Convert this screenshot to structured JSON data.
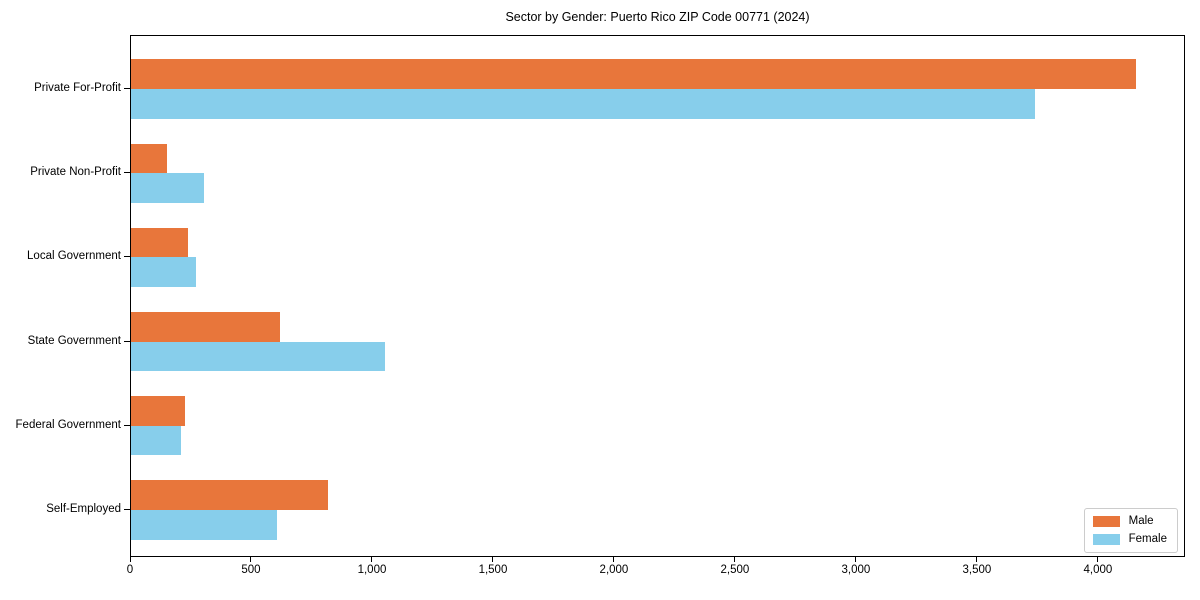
{
  "chart_data": {
    "type": "bar",
    "orientation": "horizontal",
    "title": "Sector by Gender: Puerto Rico ZIP Code 00771 (2024)",
    "categories": [
      "Private For-Profit",
      "Private Non-Profit",
      "Local Government",
      "State Government",
      "Federal Government",
      "Self-Employed"
    ],
    "series": [
      {
        "name": "Male",
        "color": "#E8763B",
        "values": [
          4155,
          150,
          235,
          615,
          225,
          815
        ]
      },
      {
        "name": "Female",
        "color": "#87CEEB",
        "values": [
          3735,
          300,
          270,
          1050,
          205,
          605
        ]
      }
    ],
    "xlabel": "",
    "ylabel": "",
    "xlim": [
      0,
      4360
    ],
    "xticks": [
      0,
      500,
      1000,
      1500,
      2000,
      2500,
      3000,
      3500,
      4000
    ],
    "xtick_labels": [
      "0",
      "500",
      "1,000",
      "1,500",
      "2,000",
      "2,500",
      "3,000",
      "3,500",
      "4,000"
    ],
    "grid": false,
    "legend": {
      "position": "lower-right",
      "entries": [
        "Male",
        "Female"
      ]
    },
    "colors": {
      "background": "#ffffff",
      "axis": "#000000",
      "legend_border": "#cccccc",
      "text": "#000000"
    }
  }
}
